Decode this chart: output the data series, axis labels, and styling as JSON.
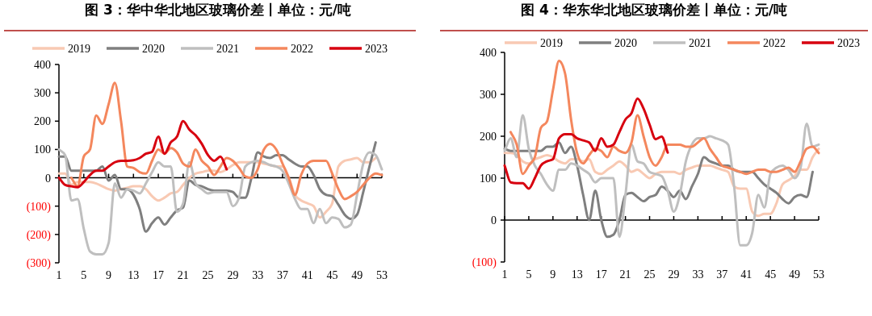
{
  "chart_data": [
    {
      "type": "line",
      "title": "图 3：华中华北地区玻璃价差丨单位：元/吨",
      "legend": "top",
      "x": [
        1,
        2,
        3,
        4,
        5,
        6,
        7,
        8,
        9,
        10,
        11,
        12,
        13,
        14,
        15,
        16,
        17,
        18,
        19,
        20,
        21,
        22,
        23,
        24,
        25,
        26,
        27,
        28,
        29,
        30,
        31,
        32,
        33,
        34,
        35,
        36,
        37,
        38,
        39,
        40,
        41,
        42,
        43,
        44,
        45,
        46,
        47,
        48,
        49,
        50,
        51,
        52,
        53
      ],
      "xlim": [
        1,
        53
      ],
      "xticks": [
        1,
        5,
        9,
        13,
        17,
        21,
        25,
        29,
        33,
        37,
        41,
        45,
        49,
        53
      ],
      "ylim": [
        -300,
        400
      ],
      "yticks": [
        {
          "value": -300,
          "label": "(300)"
        },
        {
          "value": -200,
          "label": "(200)"
        },
        {
          "value": -100,
          "label": "(100)"
        },
        0,
        100,
        200,
        300,
        400
      ],
      "series": [
        {
          "name": "2019",
          "color": "#f8c9b3",
          "values": [
            15,
            15,
            -25,
            -15,
            -15,
            -15,
            -20,
            -30,
            -40,
            -45,
            -40,
            -35,
            -30,
            -30,
            -40,
            -65,
            -80,
            -70,
            -55,
            -50,
            -25,
            0,
            15,
            20,
            25,
            25,
            20,
            30,
            45,
            55,
            55,
            55,
            55,
            50,
            45,
            40,
            40,
            0,
            -60,
            -80,
            -90,
            -100,
            -140,
            -120,
            -90,
            40,
            60,
            65,
            70,
            55,
            55,
            70,
            null
          ]
        },
        {
          "name": "2020",
          "color": "#7f7f7f",
          "values": [
            75,
            75,
            25,
            25,
            25,
            25,
            25,
            40,
            -10,
            10,
            -40,
            -40,
            -60,
            -110,
            -190,
            -160,
            -140,
            -165,
            -140,
            -115,
            -105,
            -10,
            -25,
            -30,
            -40,
            -45,
            -45,
            -45,
            -50,
            -70,
            -70,
            0,
            90,
            75,
            70,
            80,
            80,
            65,
            50,
            40,
            40,
            10,
            -40,
            -60,
            -65,
            -95,
            -130,
            -145,
            -130,
            -50,
            40,
            125,
            null
          ]
        },
        {
          "name": "2021",
          "color": "#bfbfbf",
          "values": [
            100,
            80,
            -80,
            -75,
            -180,
            -260,
            -270,
            -270,
            -230,
            -20,
            -70,
            -40,
            -45,
            -55,
            -20,
            20,
            55,
            40,
            40,
            -120,
            -90,
            55,
            -20,
            -40,
            -55,
            -50,
            -50,
            -50,
            -100,
            -70,
            40,
            55,
            60,
            55,
            45,
            40,
            25,
            -20,
            -75,
            -110,
            -110,
            -160,
            -110,
            -160,
            -140,
            -145,
            -175,
            -165,
            -60,
            50,
            90,
            80,
            30
          ]
        },
        {
          "name": "2022",
          "color": "#f4875d",
          "values": [
            null,
            null,
            0,
            -30,
            75,
            100,
            220,
            190,
            260,
            335,
            200,
            40,
            35,
            20,
            15,
            60,
            100,
            85,
            105,
            90,
            50,
            40,
            100,
            60,
            40,
            10,
            40,
            70,
            60,
            35,
            5,
            0,
            30,
            100,
            120,
            100,
            50,
            0,
            -60,
            10,
            50,
            60,
            60,
            60,
            15,
            -40,
            -75,
            -65,
            -50,
            -25,
            0,
            15,
            10
          ]
        },
        {
          "name": "2023",
          "color": "#d7000f",
          "values": [
            0,
            -25,
            -30,
            -33,
            -15,
            10,
            25,
            25,
            40,
            55,
            60,
            60,
            62,
            70,
            85,
            92,
            145,
            85,
            125,
            145,
            200,
            170,
            150,
            120,
            80,
            60,
            75,
            30,
            null,
            null,
            null,
            null,
            null,
            null,
            null,
            null,
            null,
            null,
            null,
            null,
            null,
            null,
            null,
            null,
            null,
            null,
            null,
            null,
            null,
            null,
            null,
            null,
            null
          ]
        }
      ]
    },
    {
      "type": "line",
      "title": "图 4：华东华北地区玻璃价差丨单位：元/吨",
      "legend": "top",
      "x": [
        1,
        2,
        3,
        4,
        5,
        6,
        7,
        8,
        9,
        10,
        11,
        12,
        13,
        14,
        15,
        16,
        17,
        18,
        19,
        20,
        21,
        22,
        23,
        24,
        25,
        26,
        27,
        28,
        29,
        30,
        31,
        32,
        33,
        34,
        35,
        36,
        37,
        38,
        39,
        40,
        41,
        42,
        43,
        44,
        45,
        46,
        47,
        48,
        49,
        50,
        51,
        52,
        53
      ],
      "xlim": [
        1,
        53
      ],
      "xticks": [
        1,
        5,
        9,
        13,
        17,
        21,
        25,
        29,
        33,
        37,
        41,
        45,
        49,
        53
      ],
      "ylim": [
        -100,
        400
      ],
      "yticks": [
        {
          "value": -100,
          "label": "(100)"
        },
        0,
        100,
        200,
        300,
        400
      ],
      "series": [
        {
          "name": "2019",
          "color": "#f8c9b3",
          "values": [
            160,
            160,
            155,
            140,
            135,
            145,
            150,
            155,
            150,
            140,
            135,
            145,
            145,
            140,
            145,
            115,
            110,
            120,
            130,
            140,
            130,
            115,
            120,
            110,
            100,
            110,
            115,
            115,
            115,
            110,
            120,
            125,
            130,
            130,
            130,
            125,
            120,
            115,
            80,
            75,
            75,
            20,
            10,
            15,
            15,
            40,
            85,
            95,
            105,
            120,
            120,
            150,
            170
          ]
        },
        {
          "name": "2020",
          "color": "#7f7f7f",
          "values": [
            170,
            165,
            165,
            165,
            165,
            165,
            165,
            175,
            175,
            185,
            160,
            175,
            130,
            60,
            0,
            70,
            0,
            -40,
            -35,
            0,
            60,
            65,
            55,
            45,
            55,
            60,
            80,
            70,
            55,
            70,
            50,
            80,
            110,
            150,
            140,
            135,
            130,
            130,
            120,
            115,
            115,
            115,
            100,
            85,
            75,
            65,
            50,
            40,
            55,
            60,
            55,
            115,
            null
          ]
        },
        {
          "name": "2021",
          "color": "#bfbfbf",
          "values": [
            165,
            195,
            150,
            250,
            170,
            130,
            110,
            85,
            70,
            120,
            120,
            135,
            130,
            120,
            110,
            90,
            100,
            100,
            100,
            -40,
            60,
            180,
            140,
            135,
            115,
            110,
            105,
            70,
            20,
            60,
            140,
            180,
            195,
            195,
            200,
            195,
            190,
            180,
            80,
            -60,
            -60,
            -30,
            60,
            30,
            110,
            125,
            130,
            120,
            100,
            125,
            230,
            175,
            180
          ]
        },
        {
          "name": "2022",
          "color": "#f4875d",
          "values": [
            null,
            210,
            180,
            110,
            130,
            150,
            220,
            235,
            310,
            380,
            350,
            240,
            160,
            135,
            155,
            170,
            165,
            150,
            175,
            165,
            160,
            185,
            250,
            200,
            150,
            130,
            150,
            180,
            180,
            180,
            175,
            175,
            185,
            195,
            170,
            150,
            130,
            125,
            120,
            115,
            110,
            115,
            120,
            120,
            115,
            115,
            120,
            125,
            115,
            140,
            170,
            175,
            160
          ]
        },
        {
          "name": "2023",
          "color": "#d7000f",
          "values": [
            130,
            90,
            88,
            88,
            75,
            100,
            130,
            140,
            145,
            195,
            205,
            205,
            195,
            190,
            185,
            165,
            195,
            175,
            180,
            210,
            240,
            255,
            290,
            266,
            228,
            193,
            199,
            161,
            null,
            null,
            null,
            null,
            null,
            null,
            null,
            null,
            null,
            null,
            null,
            null,
            null,
            null,
            null,
            null,
            null,
            null,
            null,
            null,
            null,
            null,
            null,
            null,
            null
          ]
        }
      ]
    }
  ]
}
